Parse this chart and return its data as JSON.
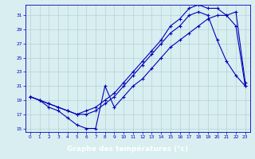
{
  "title": "Graphe des températures (°c)",
  "bg_color": "#d8eef0",
  "line_color": "#0000bb",
  "grid_color": "#a8cece",
  "xlim": [
    -0.5,
    23.5
  ],
  "ylim": [
    14.5,
    32.5
  ],
  "yticks": [
    15,
    17,
    19,
    21,
    23,
    25,
    27,
    29,
    31
  ],
  "xticks": [
    0,
    1,
    2,
    3,
    4,
    5,
    6,
    7,
    8,
    9,
    10,
    11,
    12,
    13,
    14,
    15,
    16,
    17,
    18,
    19,
    20,
    21,
    22,
    23
  ],
  "s1_x": [
    0,
    1,
    2,
    3,
    4,
    5,
    6,
    7,
    8,
    9,
    10,
    11,
    12,
    13,
    14,
    15,
    16,
    17,
    18,
    19,
    20,
    21,
    22,
    23
  ],
  "s1_y": [
    19.5,
    19.0,
    18.5,
    18.0,
    17.5,
    17.0,
    17.5,
    18.0,
    19.0,
    20.0,
    21.5,
    23.0,
    24.5,
    26.0,
    27.5,
    29.5,
    30.5,
    32.0,
    32.5,
    32.0,
    32.0,
    31.0,
    29.5,
    21.0
  ],
  "s2_x": [
    0,
    1,
    2,
    3,
    4,
    5,
    6,
    7,
    8,
    9,
    10,
    11,
    12,
    13,
    14,
    15,
    16,
    17,
    18,
    19,
    20,
    21,
    22,
    23
  ],
  "s2_y": [
    19.5,
    19.0,
    18.0,
    17.5,
    16.5,
    15.5,
    15.0,
    15.0,
    21.0,
    18.0,
    19.5,
    21.0,
    22.0,
    23.5,
    25.0,
    26.5,
    27.5,
    28.5,
    29.5,
    30.5,
    31.0,
    31.0,
    31.5,
    21.5
  ],
  "s3_x": [
    0,
    1,
    2,
    3,
    4,
    5,
    6,
    7,
    8,
    9,
    10,
    11,
    12,
    13,
    14,
    15,
    16,
    17,
    18,
    19,
    20,
    21,
    22,
    23
  ],
  "s3_y": [
    19.5,
    19.0,
    18.5,
    18.0,
    17.5,
    17.0,
    17.0,
    17.5,
    18.5,
    19.5,
    21.0,
    22.5,
    24.0,
    25.5,
    27.0,
    28.5,
    29.5,
    31.0,
    31.5,
    31.0,
    27.5,
    24.5,
    22.5,
    21.0
  ]
}
